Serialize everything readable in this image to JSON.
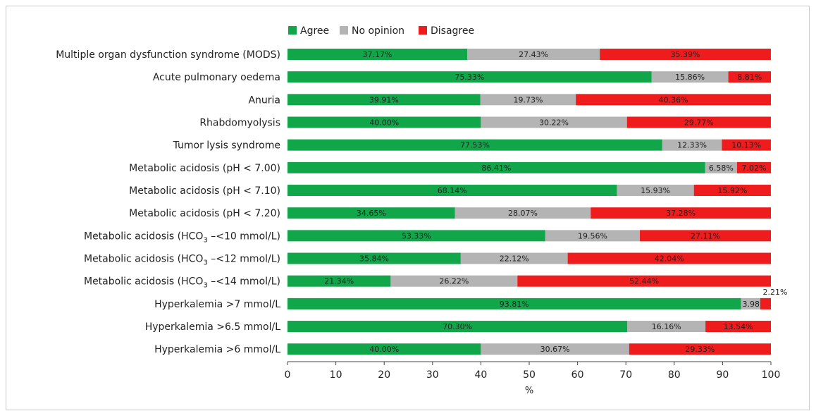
{
  "chart_data": {
    "type": "bar",
    "orientation": "horizontal",
    "stacked": true,
    "categories": [
      [
        "Multiple organ dysfunction syndrome (MODS)"
      ],
      [
        "Acute pulmonary oedema"
      ],
      [
        "Anuria"
      ],
      [
        "Rhabdomyolysis"
      ],
      [
        "Tumor lysis syndrome"
      ],
      [
        "Metabolic acidosis (pH < 7.00)"
      ],
      [
        "Metabolic acidosis (pH < 7.10)"
      ],
      [
        "Metabolic acidosis (pH < 7.20)"
      ],
      [
        "Metabolic acidosis (HCO",
        "3",
        " –<10 mmol/L)"
      ],
      [
        "Metabolic acidosis (HCO",
        "3",
        " –<12 mmol/L)"
      ],
      [
        "Metabolic acidosis (HCO",
        "3",
        " –<14 mmol/L)"
      ],
      [
        "Hyperkalemia >7 mmol/L"
      ],
      [
        "Hyperkalemia >6.5 mmol/L"
      ],
      [
        "Hyperkalemia >6 mmol/L"
      ]
    ],
    "series": [
      {
        "name": "Agree",
        "color": "#12a64a",
        "values": [
          37.17,
          75.33,
          39.91,
          40.0,
          77.53,
          86.41,
          68.14,
          34.65,
          53.33,
          35.84,
          21.34,
          93.81,
          70.3,
          40.0
        ],
        "labels": [
          "37.17%",
          "75.33%",
          "39.91%",
          "40.00%",
          "77.53%",
          "86.41%",
          "68.14%",
          "34.65%",
          "53.33%",
          "35.84%",
          "21.34%",
          "93.81%",
          "70.30%",
          "40.00%"
        ]
      },
      {
        "name": "No opinion",
        "color": "#b4b4b4",
        "values": [
          27.43,
          15.86,
          19.73,
          30.22,
          12.33,
          6.58,
          15.93,
          28.07,
          19.56,
          22.12,
          26.22,
          3.98,
          16.16,
          30.67
        ],
        "labels": [
          "27.43%",
          "15.86%",
          "19.73%",
          "30.22%",
          "12.33%",
          "6.58%",
          "15.93%",
          "28.07%",
          "19.56%",
          "22.12%",
          "26.22%",
          "3.98%",
          "16.16%",
          "30.67%"
        ]
      },
      {
        "name": "Disagree",
        "color": "#ee1c1c",
        "values": [
          35.39,
          8.81,
          40.36,
          29.77,
          10.13,
          7.02,
          15.92,
          37.28,
          27.11,
          42.04,
          52.44,
          2.21,
          13.54,
          29.33
        ],
        "labels": [
          "35.39%",
          "8.81%",
          "40.36%",
          "29.77%",
          "10.13%",
          "7.02%",
          "15.92%",
          "37.28%",
          "27.11%",
          "42.04%",
          "52.44%",
          "2.21%",
          "13.54%",
          "29.33%"
        ]
      }
    ],
    "xlabel": "%",
    "xlim": [
      0,
      100
    ],
    "xticks": [
      0,
      10,
      20,
      30,
      40,
      50,
      60,
      70,
      80,
      90,
      100
    ],
    "grid": false,
    "legend_position": "top"
  }
}
